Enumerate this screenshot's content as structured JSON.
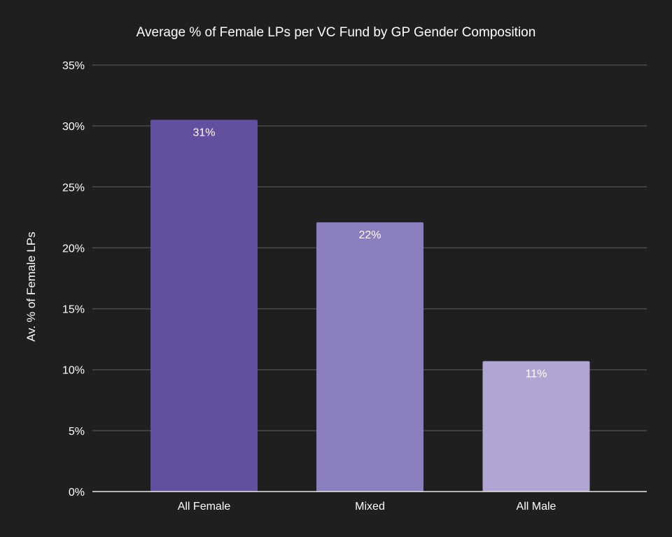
{
  "chart_data": {
    "type": "bar",
    "title": "Average % of Female LPs per VC Fund by GP Gender Composition",
    "xlabel": "",
    "ylabel": "Av. % of Female LPs",
    "categories": [
      "All Female",
      "Mixed",
      "All Male"
    ],
    "values": [
      30.5,
      22.1,
      10.7
    ],
    "data_labels": [
      "31%",
      "22%",
      "11%"
    ],
    "colors": [
      "#634fa0",
      "#8b7ebe",
      "#b1a5d3"
    ],
    "ylim": [
      0,
      35
    ],
    "yticks": [
      0,
      5,
      10,
      15,
      20,
      25,
      30,
      35
    ],
    "ytick_labels": [
      "0%",
      "5%",
      "10%",
      "15%",
      "20%",
      "25%",
      "30%",
      "35%"
    ],
    "grid": true,
    "legend": "none"
  }
}
